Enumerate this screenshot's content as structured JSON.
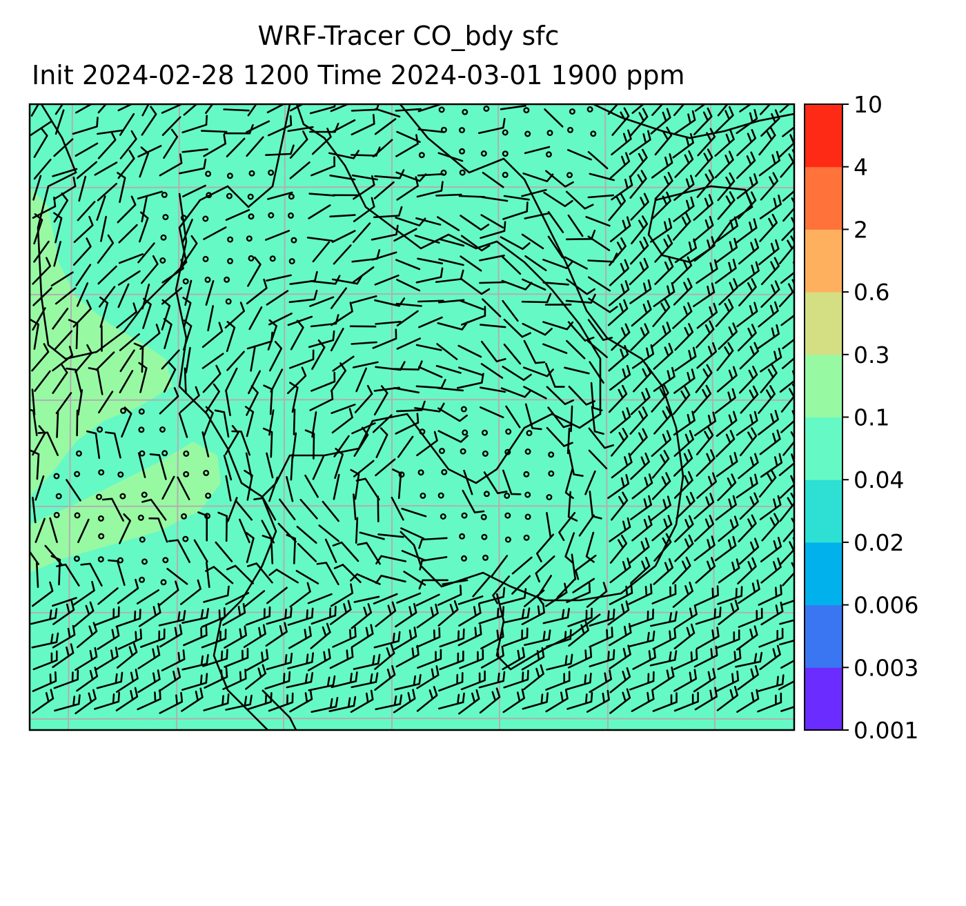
{
  "title": {
    "line1": "WRF-Tracer CO_bdy sfc",
    "line2": "Init 2024-02-28 1200 Time 2024-03-01 1900 ppm"
  },
  "colorbar": {
    "ticks": [
      "0.001",
      "0.003",
      "0.006",
      "0.02",
      "0.04",
      "0.1",
      "0.3",
      "0.6",
      "2",
      "4",
      "10"
    ],
    "colors": [
      "#6a2cff",
      "#3a76f2",
      "#00b1ec",
      "#2de0d3",
      "#65f9c6",
      "#98f9a3",
      "#d4df84",
      "#ffb05f",
      "#ff733b",
      "#ff2a16"
    ]
  },
  "map": {
    "background_color": "#65f9c6",
    "elevated_color": "#98f9a3",
    "gridline_color": "#b0b0b0",
    "coastline_color": "#000000",
    "wind_barb_color": "#000000"
  }
}
